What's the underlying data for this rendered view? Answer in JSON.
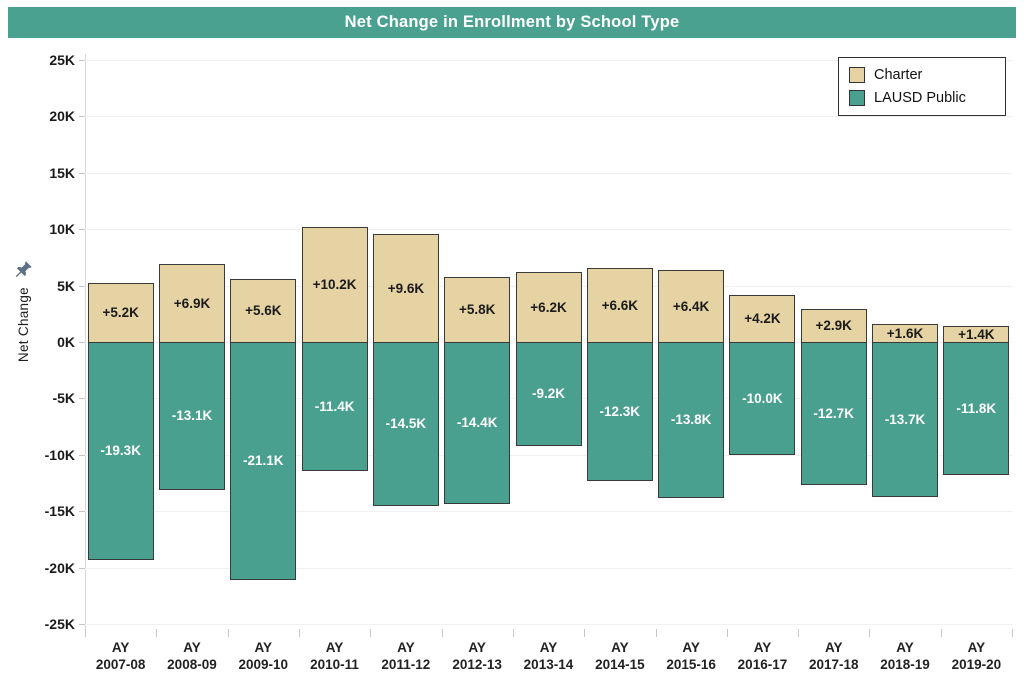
{
  "title": "Net Change in Enrollment by School Type",
  "colors": {
    "header_bg": "#4aa18f",
    "charter": "#e5d3a4",
    "lausd": "#4aa08e",
    "bar_border": "#3a3a3a",
    "grid": "#f1f1f1"
  },
  "legend": {
    "items": [
      {
        "label": "Charter",
        "color": "#e5d3a4"
      },
      {
        "label": "LAUSD Public",
        "color": "#4aa08e"
      }
    ]
  },
  "y_axis": {
    "title": "Net Change",
    "tick_values": [
      25,
      20,
      15,
      10,
      5,
      0,
      -5,
      -10,
      -15,
      -20,
      -25
    ],
    "tick_labels": [
      "25K",
      "20K",
      "15K",
      "10K",
      "5K",
      "0K",
      "-5K",
      "-10K",
      "-15K",
      "-20K",
      "-25K"
    ]
  },
  "chart_data": {
    "type": "bar",
    "stacked": true,
    "title": "Net Change in Enrollment by School Type",
    "xlabel": "",
    "ylabel": "Net Change",
    "ylim": [
      -25,
      25
    ],
    "grid": true,
    "legend_position": "top-right",
    "categories": [
      "AY 2007-08",
      "AY 2008-09",
      "AY 2009-10",
      "AY 2010-11",
      "AY 2011-12",
      "AY 2012-13",
      "AY 2013-14",
      "AY 2014-15",
      "AY 2015-16",
      "AY 2016-17",
      "AY 2017-18",
      "AY 2018-19",
      "AY 2019-20"
    ],
    "series": [
      {
        "name": "Charter",
        "color": "#e5d3a4",
        "values": [
          5.2,
          6.9,
          5.6,
          10.2,
          9.6,
          5.8,
          6.2,
          6.6,
          6.4,
          4.2,
          2.9,
          1.6,
          1.4
        ],
        "labels": [
          "+5.2K",
          "+6.9K",
          "+5.6K",
          "+10.2K",
          "+9.6K",
          "+5.8K",
          "+6.2K",
          "+6.6K",
          "+6.4K",
          "+4.2K",
          "+2.9K",
          "+1.6K",
          "+1.4K"
        ]
      },
      {
        "name": "LAUSD Public",
        "color": "#4aa08e",
        "values": [
          -19.3,
          -13.1,
          -21.1,
          -11.4,
          -14.5,
          -14.4,
          -9.2,
          -12.3,
          -13.8,
          -10.0,
          -12.7,
          -13.7,
          -11.8
        ],
        "labels": [
          "-19.3K",
          "-13.1K",
          "-21.1K",
          "-11.4K",
          "-14.5K",
          "-14.4K",
          "-9.2K",
          "-12.3K",
          "-13.8K",
          "-10.0K",
          "-12.7K",
          "-13.7K",
          "-11.8K"
        ]
      }
    ]
  }
}
